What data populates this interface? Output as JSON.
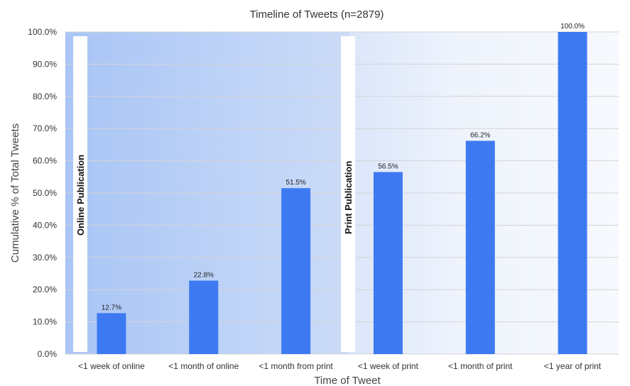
{
  "chart_data": {
    "type": "bar",
    "title": "Timeline of Tweets (n=2879)",
    "xlabel": "Time of Tweet",
    "ylabel": "Cumulative % of Total Tweets",
    "categories": [
      "<1 week of online",
      "<1 month of online",
      "<1 month from print",
      "<1 week of print",
      "<1 month of print",
      "<1 year of print"
    ],
    "values": [
      12.7,
      22.8,
      51.5,
      56.5,
      66.2,
      100.0
    ],
    "data_labels": [
      "12.7%",
      "22.8%",
      "51.5%",
      "56.5%",
      "66.2%",
      "100.0%"
    ],
    "ylim": [
      0,
      100
    ],
    "y_ticks": [
      "0.0%",
      "10.0%",
      "20.0%",
      "30.0%",
      "40.0%",
      "50.0%",
      "60.0%",
      "70.0%",
      "80.0%",
      "90.0%",
      "100.0%"
    ],
    "grid": true,
    "bar_color": "#3d7af2",
    "annotations": [
      "Online Publication",
      "Print Publication"
    ],
    "shaded_region_colors": [
      "#a9c5f5",
      "#eef3fc"
    ]
  }
}
